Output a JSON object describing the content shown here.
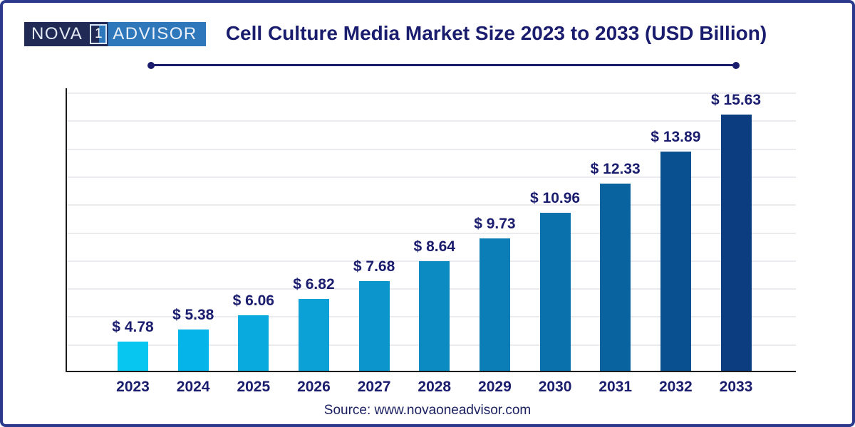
{
  "brand": {
    "nova": "NOVA",
    "one": "1",
    "advisor": "ADVISOR"
  },
  "title": "Cell Culture Media Market Size 2023 to 2033 (USD Billion)",
  "source": "Source: www.novaoneadvisor.com",
  "chart_data": {
    "type": "bar",
    "title": "Cell Culture Media Market Size 2023 to 2033 (USD Billion)",
    "unit": "USD Billion",
    "categories": [
      "2023",
      "2024",
      "2025",
      "2026",
      "2027",
      "2028",
      "2029",
      "2030",
      "2031",
      "2032",
      "2033"
    ],
    "values": [
      4.78,
      5.38,
      6.06,
      6.82,
      7.68,
      8.64,
      9.73,
      10.96,
      12.33,
      13.89,
      15.63
    ],
    "value_labels": [
      "$ 4.78",
      "$ 5.38",
      "$ 6.06",
      "$ 6.82",
      "$ 7.68",
      "$ 8.64",
      "$ 9.73",
      "$ 10.96",
      "$ 12.33",
      "$ 13.89",
      "$ 15.63"
    ],
    "bar_colors": [
      "#07C6F0",
      "#05B5E9",
      "#09ABDF",
      "#0BA0D6",
      "#0C95CC",
      "#0C8AC2",
      "#0B7EB7",
      "#0A71AC",
      "#09639F",
      "#085090",
      "#0B3D80"
    ],
    "ylim": [
      3.4,
      16.9
    ],
    "y_axis_labels": "none",
    "gridline_count": 10,
    "grid": "horizontal-light",
    "legend_position": "none"
  },
  "colors": {
    "text_navy": "#1A1C6E",
    "frame_border": "#2B3A8C",
    "axis_line": "#1C1C1C",
    "gridline": "#EAEAEF",
    "logo_navy": "#212A55",
    "logo_blue": "#2E77BA",
    "source_text": "#1B2060"
  }
}
